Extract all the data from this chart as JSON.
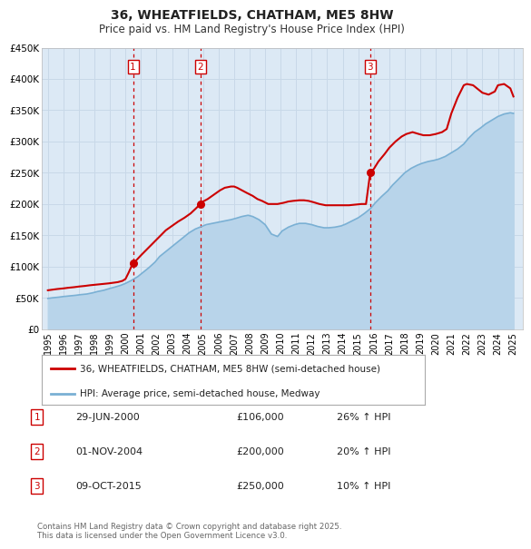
{
  "title": "36, WHEATFIELDS, CHATHAM, ME5 8HW",
  "subtitle": "Price paid vs. HM Land Registry's House Price Index (HPI)",
  "background_color": "#ffffff",
  "plot_background_color": "#dce9f5",
  "grid_color": "#c8d8e8",
  "ylabel": "",
  "ylim": [
    0,
    450000
  ],
  "yticks": [
    0,
    50000,
    100000,
    150000,
    200000,
    250000,
    300000,
    350000,
    400000,
    450000
  ],
  "ytick_labels": [
    "£0",
    "£50K",
    "£100K",
    "£150K",
    "£200K",
    "£250K",
    "£300K",
    "£350K",
    "£400K",
    "£450K"
  ],
  "xlim_start": 1994.6,
  "xlim_end": 2025.6,
  "xticks": [
    1995,
    1996,
    1997,
    1998,
    1999,
    2000,
    2001,
    2002,
    2003,
    2004,
    2005,
    2006,
    2007,
    2008,
    2009,
    2010,
    2011,
    2012,
    2013,
    2014,
    2015,
    2016,
    2017,
    2018,
    2019,
    2020,
    2021,
    2022,
    2023,
    2024,
    2025
  ],
  "price_color": "#cc0000",
  "hpi_color": "#7ab0d4",
  "hpi_fill_color": "#b8d4ea",
  "marker_color": "#cc0000",
  "vline_color": "#cc0000",
  "sale_points": [
    {
      "year": 2000.49,
      "price": 106000,
      "label": "1"
    },
    {
      "year": 2004.83,
      "price": 200000,
      "label": "2"
    },
    {
      "year": 2015.77,
      "price": 250000,
      "label": "3"
    }
  ],
  "legend_entries": [
    {
      "label": "36, WHEATFIELDS, CHATHAM, ME5 8HW (semi-detached house)",
      "color": "#cc0000"
    },
    {
      "label": "HPI: Average price, semi-detached house, Medway",
      "color": "#7ab0d4"
    }
  ],
  "table_rows": [
    {
      "num": "1",
      "date": "29-JUN-2000",
      "price": "£106,000",
      "change": "26% ↑ HPI"
    },
    {
      "num": "2",
      "date": "01-NOV-2004",
      "price": "£200,000",
      "change": "20% ↑ HPI"
    },
    {
      "num": "3",
      "date": "09-OCT-2015",
      "price": "£250,000",
      "change": "10% ↑ HPI"
    }
  ],
  "footer": "Contains HM Land Registry data © Crown copyright and database right 2025.\nThis data is licensed under the Open Government Licence v3.0.",
  "price_data_years": [
    1995.0,
    1995.3,
    1995.6,
    1996.0,
    1996.3,
    1996.7,
    1997.0,
    1997.4,
    1997.7,
    1998.1,
    1998.5,
    1998.9,
    1999.2,
    1999.5,
    1999.8,
    2000.0,
    2000.2,
    2000.49,
    2000.7,
    2001.0,
    2001.4,
    2001.8,
    2002.2,
    2002.6,
    2003.0,
    2003.4,
    2003.8,
    2004.2,
    2004.5,
    2004.83,
    2005.0,
    2005.3,
    2005.7,
    2006.1,
    2006.4,
    2006.8,
    2007.0,
    2007.2,
    2007.5,
    2007.8,
    2008.2,
    2008.5,
    2008.8,
    2009.2,
    2009.5,
    2009.8,
    2010.2,
    2010.5,
    2010.8,
    2011.2,
    2011.5,
    2011.8,
    2012.1,
    2012.5,
    2012.9,
    2013.2,
    2013.6,
    2014.0,
    2014.4,
    2014.8,
    2015.2,
    2015.5,
    2015.77,
    2016.0,
    2016.3,
    2016.7,
    2017.0,
    2017.4,
    2017.8,
    2018.1,
    2018.5,
    2018.9,
    2019.2,
    2019.6,
    2020.0,
    2020.4,
    2020.7,
    2021.0,
    2021.4,
    2021.8,
    2022.0,
    2022.4,
    2022.8,
    2023.0,
    2023.4,
    2023.8,
    2024.0,
    2024.4,
    2024.8,
    2025.0
  ],
  "price_data_values": [
    62000,
    63000,
    64000,
    65000,
    66000,
    67000,
    68000,
    69000,
    70000,
    71000,
    72000,
    73000,
    74000,
    75000,
    77000,
    80000,
    90000,
    106000,
    110000,
    118000,
    128000,
    138000,
    148000,
    158000,
    165000,
    172000,
    178000,
    185000,
    192000,
    200000,
    204000,
    208000,
    215000,
    222000,
    226000,
    228000,
    228000,
    226000,
    222000,
    218000,
    213000,
    208000,
    205000,
    200000,
    200000,
    200000,
    202000,
    204000,
    205000,
    206000,
    206000,
    205000,
    203000,
    200000,
    198000,
    198000,
    198000,
    198000,
    198000,
    199000,
    200000,
    200000,
    250000,
    256000,
    268000,
    280000,
    290000,
    300000,
    308000,
    312000,
    315000,
    312000,
    310000,
    310000,
    312000,
    315000,
    320000,
    345000,
    370000,
    390000,
    392000,
    390000,
    382000,
    378000,
    375000,
    380000,
    390000,
    392000,
    385000,
    372000
  ],
  "hpi_data_years": [
    1995.0,
    1995.3,
    1995.7,
    1996.0,
    1996.4,
    1996.8,
    1997.1,
    1997.5,
    1997.9,
    1998.2,
    1998.6,
    1999.0,
    1999.3,
    1999.7,
    2000.0,
    2000.4,
    2000.8,
    2001.1,
    2001.5,
    2001.9,
    2002.2,
    2002.6,
    2003.0,
    2003.4,
    2003.8,
    2004.1,
    2004.5,
    2004.9,
    2005.2,
    2005.6,
    2006.0,
    2006.4,
    2006.8,
    2007.1,
    2007.5,
    2007.9,
    2008.2,
    2008.6,
    2009.0,
    2009.4,
    2009.8,
    2010.1,
    2010.5,
    2010.9,
    2011.2,
    2011.6,
    2012.0,
    2012.4,
    2012.8,
    2013.1,
    2013.5,
    2013.9,
    2014.2,
    2014.6,
    2015.0,
    2015.4,
    2015.8,
    2016.1,
    2016.5,
    2016.9,
    2017.2,
    2017.6,
    2018.0,
    2018.4,
    2018.8,
    2019.1,
    2019.5,
    2019.9,
    2020.2,
    2020.6,
    2021.0,
    2021.4,
    2021.8,
    2022.1,
    2022.5,
    2022.9,
    2023.2,
    2023.6,
    2024.0,
    2024.4,
    2024.8,
    2025.0
  ],
  "hpi_data_values": [
    49000,
    50000,
    51000,
    52000,
    53000,
    54000,
    55000,
    56000,
    58000,
    60000,
    62000,
    65000,
    67000,
    70000,
    73000,
    78000,
    84000,
    90000,
    98000,
    107000,
    116000,
    124000,
    132000,
    140000,
    148000,
    154000,
    160000,
    164000,
    167000,
    169000,
    171000,
    173000,
    175000,
    177000,
    180000,
    182000,
    180000,
    175000,
    167000,
    152000,
    148000,
    157000,
    163000,
    167000,
    169000,
    169000,
    167000,
    164000,
    162000,
    162000,
    163000,
    165000,
    168000,
    173000,
    178000,
    185000,
    193000,
    202000,
    212000,
    221000,
    230000,
    240000,
    250000,
    257000,
    262000,
    265000,
    268000,
    270000,
    272000,
    276000,
    282000,
    288000,
    296000,
    305000,
    315000,
    322000,
    328000,
    334000,
    340000,
    344000,
    346000,
    345000
  ]
}
